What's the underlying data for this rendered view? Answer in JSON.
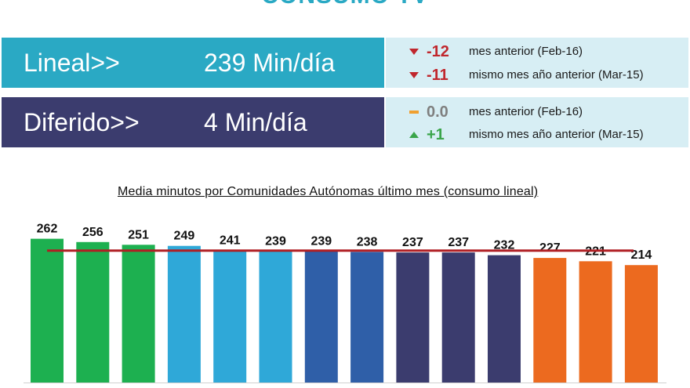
{
  "header": {
    "title": "CONSUMO TV"
  },
  "rows": [
    {
      "label": "Lineal>>",
      "value": "239 Min/día",
      "color": "#2aa9c4",
      "comparisons": [
        {
          "icon": "down-triangle-icon",
          "delta": "-12",
          "text": "mes anterior (Feb-16)",
          "color": "#c0272d"
        },
        {
          "icon": "down-triangle-icon",
          "delta": "-11",
          "text": "mismo mes año anterior (Mar-15)",
          "color": "#c0272d"
        }
      ]
    },
    {
      "label": "Diferido>>",
      "value": "4 Min/día",
      "color": "#3b3c6e",
      "comparisons": [
        {
          "icon": "dash-icon",
          "delta": "0.0",
          "text": "mes anterior (Feb-16)",
          "color": "#7f7f7f"
        },
        {
          "icon": "up-triangle-icon",
          "delta": "+1",
          "text": "mismo mes año anterior (Mar-15)",
          "color": "#3aa54a"
        }
      ]
    }
  ],
  "chart_data": {
    "type": "bar",
    "title": "Media minutos por Comunidades  Autónomas  último mes (consumo lineal)",
    "values": [
      262,
      256,
      251,
      249,
      241,
      239,
      239,
      238,
      237,
      237,
      232,
      227,
      221,
      214
    ],
    "data_labels": [
      "262",
      "256",
      "251",
      "249",
      "241",
      "239",
      "239",
      "238",
      "237",
      "237",
      "232",
      "227",
      "221",
      "214"
    ],
    "bar_colors": [
      "#1db050",
      "#1db050",
      "#1db050",
      "#2fa8d8",
      "#2fa8d8",
      "#2fa8d8",
      "#2f5fa8",
      "#2f5fa8",
      "#3b3c6e",
      "#3b3c6e",
      "#3b3c6e",
      "#ec6a1f",
      "#ec6a1f",
      "#ec6a1f"
    ],
    "reference_line": {
      "value": 239,
      "color": "#b01e23"
    },
    "ylim": [
      0,
      270
    ],
    "grid": false,
    "legend": "none"
  }
}
